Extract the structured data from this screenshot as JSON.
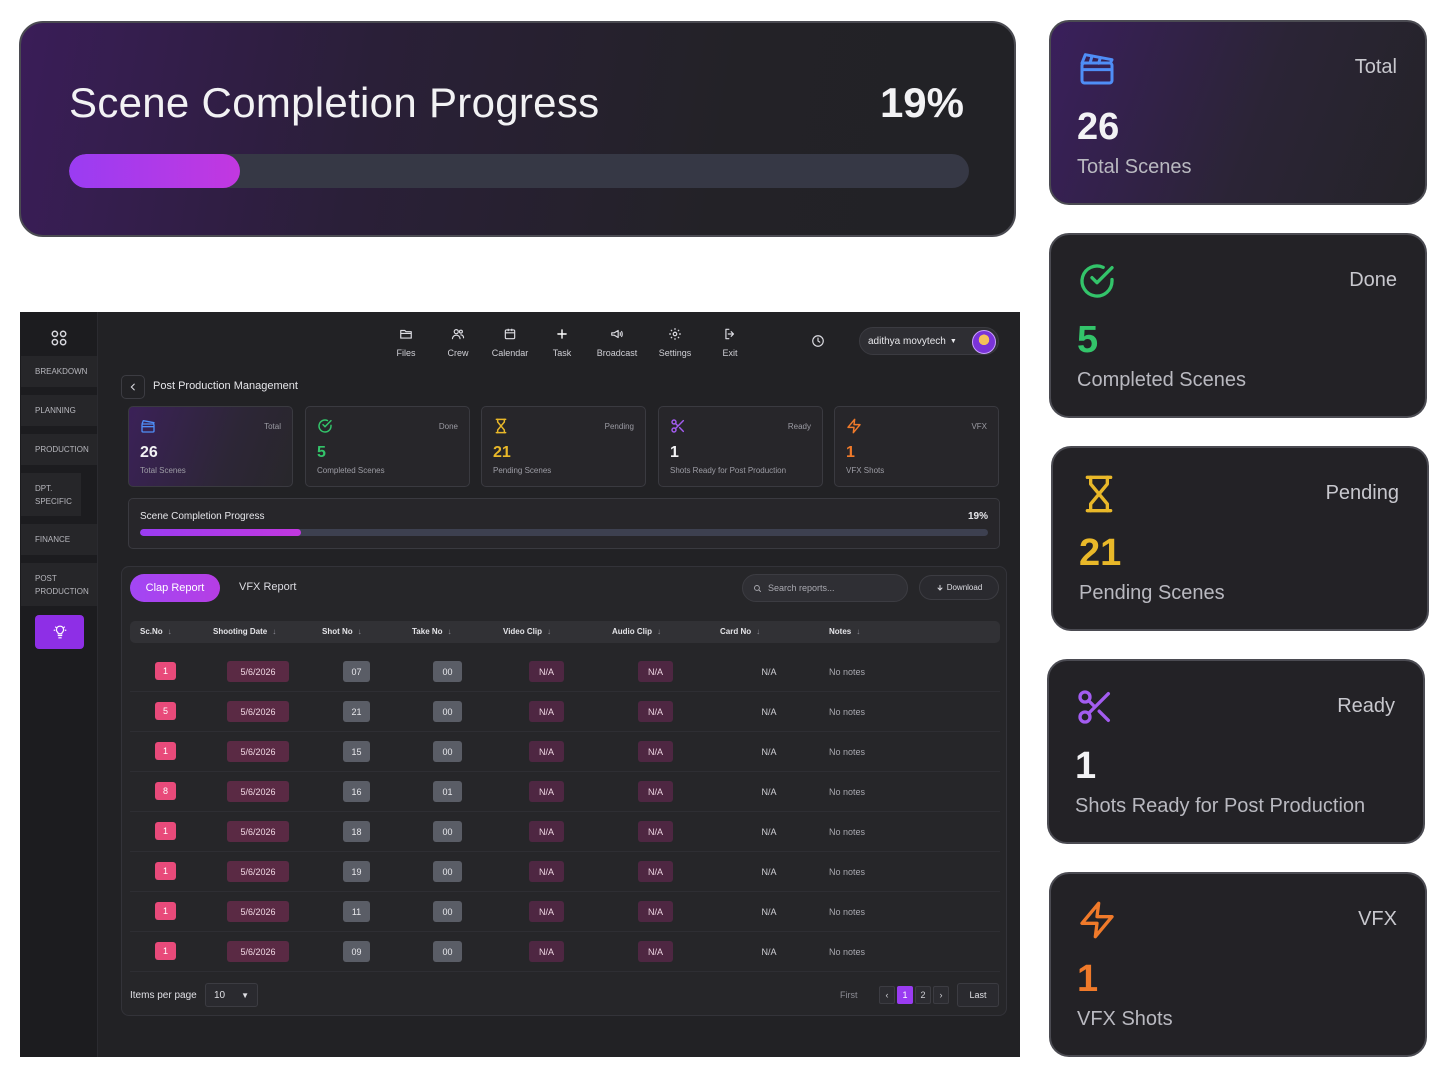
{
  "progress": {
    "title": "Scene Completion Progress",
    "percent_label": "19%",
    "percent": 19
  },
  "stats": [
    {
      "key": "total",
      "tag": "Total",
      "value": "26",
      "label": "Total Scenes",
      "icon": "clapperboard-icon",
      "color": "#4f8ef7"
    },
    {
      "key": "done",
      "tag": "Done",
      "value": "5",
      "label": "Completed Scenes",
      "icon": "check-circle-icon",
      "color": "#33c46a"
    },
    {
      "key": "pending",
      "tag": "Pending",
      "value": "21",
      "label": "Pending Scenes",
      "icon": "hourglass-icon",
      "color": "#e9b829"
    },
    {
      "key": "ready",
      "tag": "Ready",
      "value": "1",
      "label": "Shots Ready for Post Production",
      "icon": "scissors-icon",
      "color": "#a35cf0"
    },
    {
      "key": "vfx",
      "tag": "VFX",
      "value": "1",
      "label": "VFX Shots",
      "icon": "lightning-icon",
      "color": "#f07a2a"
    }
  ],
  "sidebar": {
    "items": [
      {
        "label": "BREAKDOWN"
      },
      {
        "label": "PLANNING"
      },
      {
        "label": "PRODUCTION"
      },
      {
        "label": "DPT. SPECIFIC"
      },
      {
        "label": "FINANCE"
      },
      {
        "label": "POST PRODUCTION"
      }
    ]
  },
  "nav": {
    "items": [
      {
        "label": "Files",
        "icon": "folder-icon"
      },
      {
        "label": "Crew",
        "icon": "users-icon"
      },
      {
        "label": "Calendar",
        "icon": "calendar-icon"
      },
      {
        "label": "Task",
        "icon": "plus-icon"
      },
      {
        "label": "Broadcast",
        "icon": "megaphone-icon"
      },
      {
        "label": "Settings",
        "icon": "gear-icon"
      },
      {
        "label": "Exit",
        "icon": "exit-icon"
      }
    ],
    "user": "adithya movytech"
  },
  "breadcrumb": "Post Production Management",
  "report": {
    "tabs": [
      "Clap Report",
      "VFX Report"
    ],
    "search_placeholder": "Search reports...",
    "download_label": "Download",
    "columns": [
      "Sc.No",
      "Shooting Date",
      "Shot No",
      "Take No",
      "Video Clip",
      "Audio Clip",
      "Card No",
      "Notes"
    ],
    "rows": [
      {
        "sc": "1",
        "date": "5/6/2026",
        "shot": "07",
        "take": "00",
        "video": "N/A",
        "audio": "N/A",
        "card": "N/A",
        "notes": "No notes"
      },
      {
        "sc": "5",
        "date": "5/6/2026",
        "shot": "21",
        "take": "00",
        "video": "N/A",
        "audio": "N/A",
        "card": "N/A",
        "notes": "No notes"
      },
      {
        "sc": "1",
        "date": "5/6/2026",
        "shot": "15",
        "take": "00",
        "video": "N/A",
        "audio": "N/A",
        "card": "N/A",
        "notes": "No notes"
      },
      {
        "sc": "8",
        "date": "5/6/2026",
        "shot": "16",
        "take": "01",
        "video": "N/A",
        "audio": "N/A",
        "card": "N/A",
        "notes": "No notes"
      },
      {
        "sc": "1",
        "date": "5/6/2026",
        "shot": "18",
        "take": "00",
        "video": "N/A",
        "audio": "N/A",
        "card": "N/A",
        "notes": "No notes"
      },
      {
        "sc": "1",
        "date": "5/6/2026",
        "shot": "19",
        "take": "00",
        "video": "N/A",
        "audio": "N/A",
        "card": "N/A",
        "notes": "No notes"
      },
      {
        "sc": "1",
        "date": "5/6/2026",
        "shot": "11",
        "take": "00",
        "video": "N/A",
        "audio": "N/A",
        "card": "N/A",
        "notes": "No notes"
      },
      {
        "sc": "1",
        "date": "5/6/2026",
        "shot": "09",
        "take": "00",
        "video": "N/A",
        "audio": "N/A",
        "card": "N/A",
        "notes": "No notes"
      }
    ]
  },
  "pagination": {
    "items_per_page_label": "Items per page",
    "items_per_page": "10",
    "first": "First",
    "prev": "‹",
    "pages": [
      "1",
      "2"
    ],
    "current": "1",
    "next": "›",
    "last": "Last"
  }
}
